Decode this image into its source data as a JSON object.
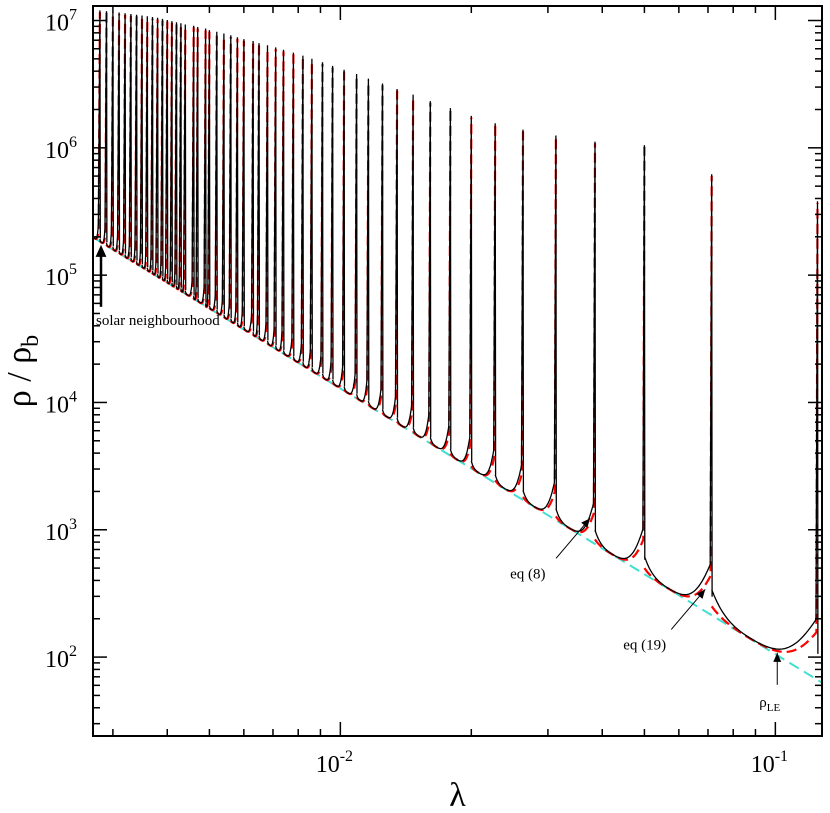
{
  "chart_data": {
    "type": "line",
    "xlabel": "λ",
    "ylabel": {
      "main": "ρ / ρ",
      "sub": "b"
    },
    "x_scale": "log",
    "y_scale": "log",
    "xlim": [
      0.0027,
      0.128
    ],
    "ylim": [
      24,
      13000000
    ],
    "x_major_ticks": [
      {
        "value": 0.01,
        "base": "10",
        "exp": "-2"
      },
      {
        "value": 0.1,
        "base": "10",
        "exp": "-1"
      }
    ],
    "y_major_ticks": [
      {
        "value": 100,
        "base": "10",
        "exp": "2"
      },
      {
        "value": 1000,
        "base": "10",
        "exp": "3"
      },
      {
        "value": 10000,
        "base": "10",
        "exp": "4"
      },
      {
        "value": 100000,
        "base": "10",
        "exp": "5"
      },
      {
        "value": 1000000,
        "base": "10",
        "exp": "6"
      },
      {
        "value": 10000000,
        "base": "10",
        "exp": "7"
      }
    ],
    "grid": false,
    "legend": "none",
    "series": [
      {
        "key": "rho_le",
        "style": "dashed",
        "color": "#40e0d0",
        "x": [
          0.0027,
          0.128
        ],
        "y": [
          198000,
          63
        ]
      },
      {
        "key": "eq19",
        "style": "dashed",
        "color": "#ff0000"
      },
      {
        "key": "exact",
        "style": "solid",
        "color": "#000000"
      }
    ],
    "resonance_peaks": {
      "note": "spikes at λ_n",
      "x": [
        0.125,
        0.0714,
        0.05,
        0.0385,
        0.0313,
        0.0263,
        0.0227,
        0.02,
        0.0179,
        0.0161,
        0.0147,
        0.0135,
        0.0125,
        0.0116,
        0.0109,
        0.0102,
        0.0096,
        0.0091,
        0.0086,
        0.0082,
        0.0078,
        0.0074,
        0.0071,
        0.0068,
        0.0065,
        0.0063,
        0.006,
        0.0058,
        0.0056,
        0.0054,
        0.0052,
        0.005,
        0.0049,
        0.0047,
        0.0046,
        0.0044,
        0.0043,
        0.0042,
        0.0041,
        0.004,
        0.0039,
        0.0038,
        0.0037,
        0.0036,
        0.0035,
        0.0034,
        0.0033,
        0.0032,
        0.0031,
        0.003,
        0.0029,
        0.0028
      ],
      "peak_y": [
        380000,
        620000,
        1050000,
        1120000,
        1250000,
        1390000,
        1560000,
        1780000,
        2050000,
        2330000,
        2620000,
        2900000,
        3200000,
        3500000,
        3800000,
        4100000,
        4400000,
        4700000,
        5000000,
        5300000,
        5600000,
        5900000,
        6150000,
        6400000,
        6650000,
        6900000,
        7150000,
        7400000,
        7650000,
        7900000,
        8150000,
        8400000,
        8650000,
        8900000,
        9100000,
        9300000,
        9500000,
        9700000,
        9900000,
        10100000,
        10300000,
        10500000,
        10650000,
        10800000,
        10950000,
        11100000,
        11250000,
        11400000,
        11550000,
        11700000,
        11850000,
        12000000
      ]
    },
    "annotations": [
      {
        "key": "solar",
        "text": "solar neighbourhood",
        "x": 0.0027,
        "y": 200000
      },
      {
        "key": "eq8",
        "text": "eq (8)",
        "x": 0.0375,
        "y": 1230
      },
      {
        "key": "eq19",
        "text": "eq (19)",
        "x": 0.069,
        "y": 340
      },
      {
        "key": "rle",
        "text_main": "ρ",
        "text_sub": "LE",
        "x": 0.101,
        "y": 108
      }
    ]
  }
}
